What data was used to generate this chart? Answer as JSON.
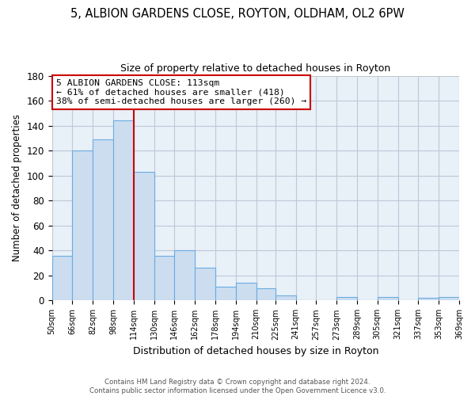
{
  "title": "5, ALBION GARDENS CLOSE, ROYTON, OLDHAM, OL2 6PW",
  "subtitle": "Size of property relative to detached houses in Royton",
  "xlabel": "Distribution of detached houses by size in Royton",
  "ylabel": "Number of detached properties",
  "bar_color": "#ccddf0",
  "bar_edge_color": "#6aace0",
  "plot_bg_color": "#e8f0f8",
  "bins": [
    50,
    66,
    82,
    98,
    114,
    130,
    146,
    162,
    178,
    194,
    210,
    225,
    241,
    257,
    273,
    289,
    305,
    321,
    337,
    353,
    369
  ],
  "values": [
    36,
    120,
    129,
    144,
    103,
    36,
    40,
    26,
    11,
    14,
    10,
    4,
    0,
    0,
    3,
    0,
    3,
    0,
    2,
    3
  ],
  "tick_labels": [
    "50sqm",
    "66sqm",
    "82sqm",
    "98sqm",
    "114sqm",
    "130sqm",
    "146sqm",
    "162sqm",
    "178sqm",
    "194sqm",
    "210sqm",
    "225sqm",
    "241sqm",
    "257sqm",
    "273sqm",
    "289sqm",
    "305sqm",
    "321sqm",
    "337sqm",
    "353sqm",
    "369sqm"
  ],
  "vline_x": 114,
  "vline_color": "#cc0000",
  "annotation_title": "5 ALBION GARDENS CLOSE: 113sqm",
  "annotation_line1": "← 61% of detached houses are smaller (418)",
  "annotation_line2": "38% of semi-detached houses are larger (260) →",
  "annotation_box_color": "#ffffff",
  "annotation_box_edge": "#cc0000",
  "ylim": [
    0,
    180
  ],
  "yticks": [
    0,
    20,
    40,
    60,
    80,
    100,
    120,
    140,
    160,
    180
  ],
  "footer1": "Contains HM Land Registry data © Crown copyright and database right 2024.",
  "footer2": "Contains public sector information licensed under the Open Government Licence v3.0.",
  "background_color": "#ffffff",
  "grid_color": "#c0c8d8"
}
